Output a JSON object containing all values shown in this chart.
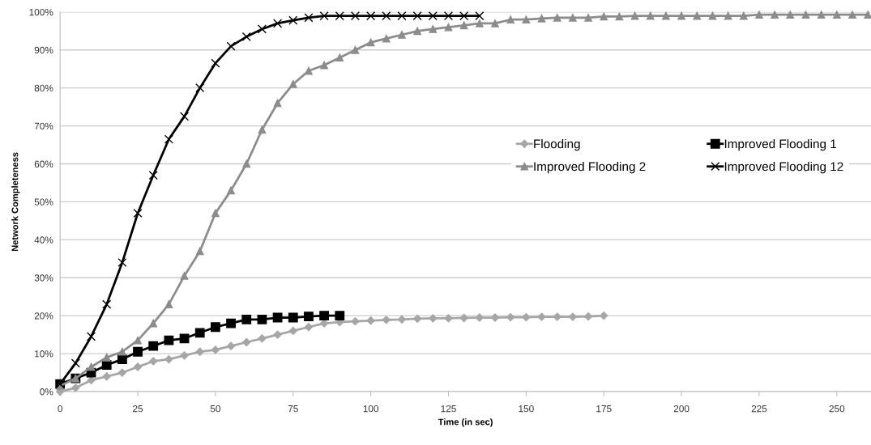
{
  "chart_data": {
    "type": "line",
    "xlabel": "Time (in sec)",
    "ylabel": "Network Completeness",
    "xlim": [
      0,
      261
    ],
    "xticks": [
      0,
      25,
      50,
      75,
      100,
      125,
      150,
      175,
      200,
      225,
      250
    ],
    "ylim": [
      0,
      100
    ],
    "yticks": [
      {
        "value": 0,
        "label": "0%"
      },
      {
        "value": 10,
        "label": "10%"
      },
      {
        "value": 20,
        "label": "20%"
      },
      {
        "value": 30,
        "label": "30%"
      },
      {
        "value": 40,
        "label": "40%"
      },
      {
        "value": 50,
        "label": "50%"
      },
      {
        "value": 60,
        "label": "60%"
      },
      {
        "value": 70,
        "label": "70%"
      },
      {
        "value": 80,
        "label": "80%"
      },
      {
        "value": 90,
        "label": "90%"
      },
      {
        "value": 100,
        "label": "100%"
      }
    ],
    "grid": "y",
    "legend": "right",
    "line_style": "solid",
    "series": [
      {
        "name": "Flooding",
        "color": "#a6a6a6",
        "marker": "diamond",
        "x": [
          0,
          5,
          10,
          15,
          20,
          25,
          30,
          35,
          40,
          45,
          50,
          55,
          60,
          65,
          70,
          75,
          80,
          85,
          90,
          95,
          100,
          105,
          110,
          115,
          120,
          125,
          130,
          135,
          140,
          145,
          150,
          155,
          160,
          165,
          170,
          175
        ],
        "values": [
          0,
          1,
          3,
          4,
          5,
          6.5,
          8,
          8.5,
          9.5,
          10.5,
          11,
          12,
          13,
          14,
          15,
          16,
          17,
          18,
          18.3,
          18.5,
          18.7,
          18.9,
          19,
          19.2,
          19.3,
          19.3,
          19.4,
          19.5,
          19.5,
          19.6,
          19.6,
          19.7,
          19.7,
          19.7,
          19.8,
          20
        ]
      },
      {
        "name": "Improved Flooding 1",
        "color": "#000000",
        "marker": "square",
        "x": [
          0,
          5,
          10,
          15,
          20,
          25,
          30,
          35,
          40,
          45,
          50,
          55,
          60,
          65,
          70,
          75,
          80,
          85,
          90
        ],
        "values": [
          2,
          3.5,
          5,
          7,
          8.5,
          10.5,
          12,
          13.5,
          14,
          15.5,
          17,
          18,
          19,
          19,
          19.5,
          19.5,
          19.8,
          20,
          20
        ]
      },
      {
        "name": "Improved Flooding 2",
        "color": "#8c8c8c",
        "marker": "triangle",
        "x": [
          0,
          5,
          10,
          15,
          20,
          25,
          30,
          35,
          40,
          45,
          50,
          55,
          60,
          65,
          70,
          75,
          80,
          85,
          90,
          95,
          100,
          105,
          110,
          115,
          120,
          125,
          130,
          135,
          140,
          145,
          150,
          155,
          160,
          165,
          170,
          175,
          180,
          185,
          190,
          195,
          200,
          205,
          210,
          215,
          220,
          225,
          230,
          235,
          240,
          245,
          250,
          255,
          260
        ],
        "values": [
          1.5,
          3.5,
          6.5,
          9,
          10.5,
          13.5,
          18,
          23,
          30.5,
          37,
          47,
          53,
          60,
          69,
          76,
          81,
          84.5,
          86,
          88,
          90,
          92,
          93,
          94,
          95,
          95.5,
          96,
          96.5,
          97,
          97,
          98,
          98,
          98.3,
          98.5,
          98.5,
          98.5,
          98.8,
          98.8,
          99,
          99,
          99,
          99,
          99,
          99,
          99,
          99,
          99.3,
          99.3,
          99.3,
          99.3,
          99.3,
          99.3,
          99.3,
          99.3
        ]
      },
      {
        "name": "Improved Flooding 12",
        "color": "#000000",
        "marker": "cross",
        "x": [
          0,
          5,
          10,
          15,
          20,
          25,
          30,
          35,
          40,
          45,
          50,
          55,
          60,
          65,
          70,
          75,
          80,
          85,
          90,
          95,
          100,
          105,
          110,
          115,
          120,
          125,
          130,
          135
        ],
        "values": [
          2,
          7.5,
          14.5,
          23,
          34,
          47,
          57,
          66.5,
          72.5,
          80,
          86.5,
          91,
          93.5,
          95.5,
          97,
          97.8,
          98.5,
          99,
          99,
          99,
          99,
          99,
          99,
          99,
          99,
          99,
          99,
          99
        ]
      }
    ]
  }
}
